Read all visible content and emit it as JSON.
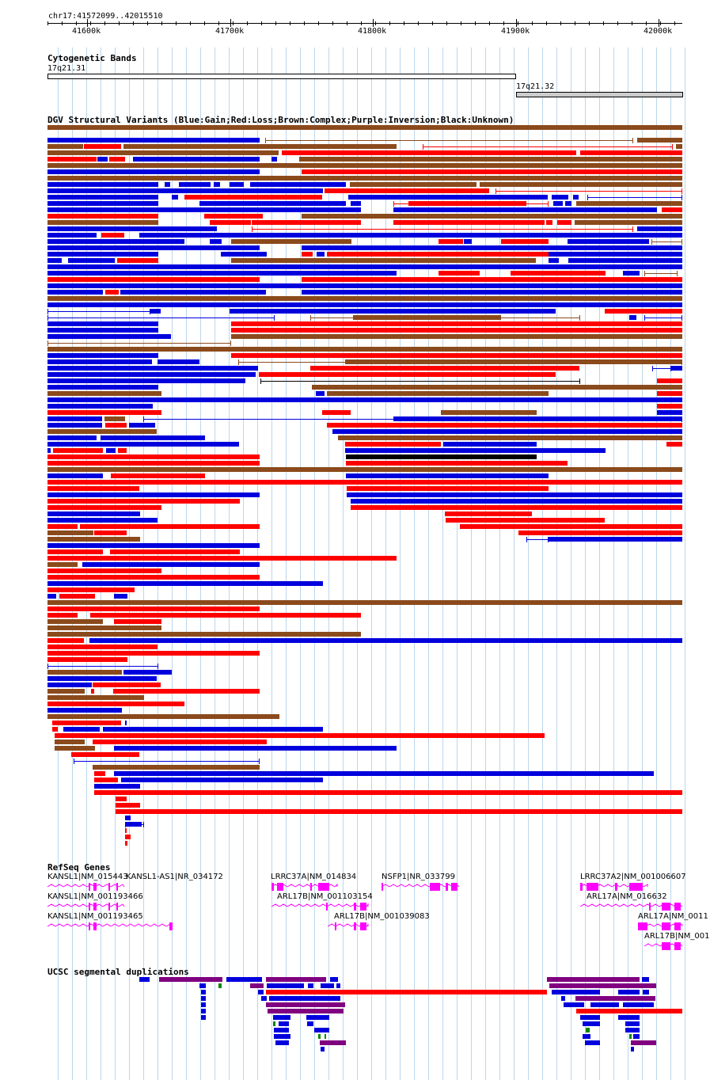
{
  "locus": "chr17:41572099..42015510",
  "ruler": {
    "ticks": [
      "41600k",
      "41700k",
      "41800k",
      "41900k",
      "42000k"
    ]
  },
  "cytobands": {
    "title": "Cytogenetic Bands",
    "bands": [
      {
        "name": "17q21.31"
      },
      {
        "name": "17q21.32"
      }
    ]
  },
  "dgv": {
    "title": "DGV Structural Variants (Blue:Gain;Red:Loss;Brown:Complex;Purple:Inversion;Black:Unknown)",
    "legend": {
      "gain": "#0000dd",
      "loss": "#ff0000",
      "complex": "#8b4a1c",
      "inversion": "#800080",
      "unknown": "#000000"
    }
  },
  "refseq": {
    "title": "RefSeq Genes",
    "color": "#ff00ff",
    "genes": [
      {
        "label": "KANSL1|NM_015443"
      },
      {
        "label": "KANSL1-AS1|NR_034172"
      },
      {
        "label": "LRRC37A|NM_014834"
      },
      {
        "label": "NSFP1|NR_033799"
      },
      {
        "label": "LRRC37A2|NM_001006607"
      },
      {
        "label": "KANSL1|NM_001193466"
      },
      {
        "label": "ARL17B|NM_001103154"
      },
      {
        "label": "ARL17A|NM_016632"
      },
      {
        "label": "KANSL1|NM_001193465"
      },
      {
        "label": "ARL17B|NM_001039083"
      },
      {
        "label": "ARL17A|NM_0011"
      },
      {
        "label": "ARL17B|NM_001"
      }
    ]
  },
  "segdup": {
    "title": "UCSC segmental duplications"
  }
}
